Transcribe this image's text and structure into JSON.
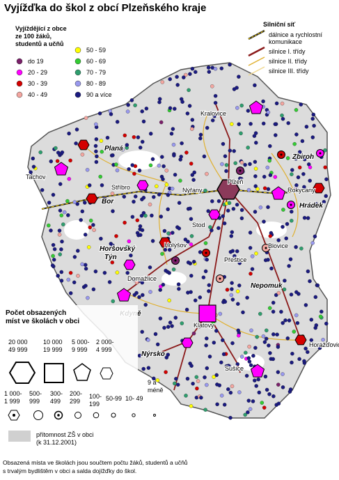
{
  "header": {
    "title": "Vyjížďka do škol z obcí Plzeňského kraje"
  },
  "rate_legend": {
    "title_lines": [
      "Vyjíždějící z obce",
      "ze 100 žáků,",
      "studentů a učňů"
    ],
    "classes": [
      {
        "label": "do 19",
        "color": "#7b1f6a"
      },
      {
        "label": "20 - 29",
        "color": "#ff00ff"
      },
      {
        "label": "30 - 39",
        "color": "#d40000"
      },
      {
        "label": "40 - 49",
        "color": "#f4a6a0"
      },
      {
        "label": "50 - 59",
        "color": "#ffff00"
      },
      {
        "label": "60 - 69",
        "color": "#33cc33"
      },
      {
        "label": "70 - 79",
        "color": "#2e9e6e"
      },
      {
        "label": "80 - 89",
        "color": "#9999ee"
      },
      {
        "label": "90 a více",
        "color": "#1a1a80"
      }
    ]
  },
  "road_legend": {
    "title": "Silniční síť",
    "items": [
      {
        "label_lines": [
          "dálnice a rychlostní",
          "komunikace"
        ],
        "color": "#222222"
      },
      {
        "label_lines": [
          "silnice I. třídy"
        ],
        "color": "#8b1a1a"
      },
      {
        "label_lines": [
          "silnice II. třídy"
        ],
        "color": "#e0b030"
      },
      {
        "label_lines": [
          "silnice III. třídy"
        ],
        "color": "#f0d890"
      }
    ]
  },
  "size_legend": {
    "title_lines": [
      "Počet obsazených",
      "míst ve školách v obci"
    ],
    "classes": [
      {
        "label_lines": [
          "20 000",
          "49 999"
        ]
      },
      {
        "label_lines": [
          "10 000",
          "19 999"
        ]
      },
      {
        "label_lines": [
          "5 000-",
          "9 999"
        ]
      },
      {
        "label_lines": [
          "2 000-",
          "4 999"
        ]
      },
      {
        "label_lines": [
          "1 000-",
          "1 999"
        ]
      },
      {
        "label_lines": [
          "500-",
          "999"
        ]
      },
      {
        "label_lines": [
          "300-",
          "499"
        ]
      },
      {
        "label_lines": [
          "200-",
          "299"
        ]
      },
      {
        "label_lines": [
          "100-",
          "199"
        ]
      },
      {
        "label_lines": [
          "50-99"
        ]
      },
      {
        "label_lines": [
          "10- 49"
        ]
      },
      {
        "label_lines": [
          "9 a",
          "méně"
        ]
      }
    ]
  },
  "school_legend": {
    "label_lines": [
      "přítomnost ZŠ v obci",
      "(k 31.12.2001)"
    ]
  },
  "places": [
    "Kralovice",
    "Planá",
    "Tachov",
    "Stříbro",
    "Bor",
    "Nýřany",
    "Plzeň",
    "Zbiroh",
    "Rokycany",
    "Hrádek",
    "Horšovský",
    "Týn",
    "Holýšov",
    "Stod",
    "Přeštice",
    "Domažlice",
    "Blovice",
    "Nepomuk",
    "Kdyně",
    "Klatovy",
    "Horažďovice",
    "Nýrsko",
    "Sušice"
  ],
  "footer": {
    "lines": [
      "Obsazená místa ve školách jsou součtem počtu žáků, studentů a učňů",
      "s trvalým bydlištěm v obci a salda dojížďky do škol."
    ]
  }
}
